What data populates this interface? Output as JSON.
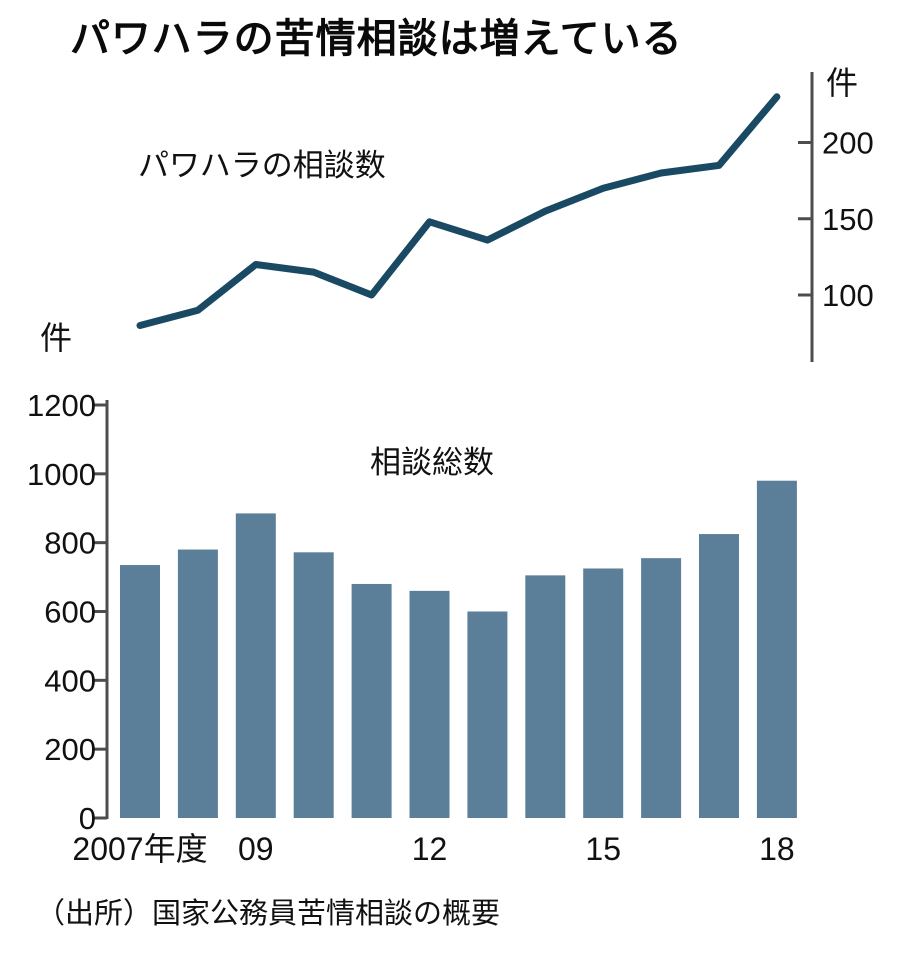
{
  "title": "パワハラの苦情相談は増えている",
  "source": "（出所）国家公務員苦情相談の概要",
  "colors": {
    "line": "#1a4a63",
    "bar": "#5c7f99",
    "axis": "#4d4d4d",
    "text": "#111111"
  },
  "chart_data": [
    {
      "type": "line",
      "title": "パワハラの相談数",
      "unit_label": "件",
      "x": [
        2007,
        2008,
        2009,
        2010,
        2011,
        2012,
        2013,
        2014,
        2015,
        2016,
        2017,
        2018
      ],
      "values": [
        80,
        90,
        120,
        115,
        100,
        148,
        136,
        155,
        170,
        180,
        185,
        230
      ],
      "ylim": [
        55,
        245
      ],
      "yticks": [
        100,
        150,
        200
      ],
      "axis_side": "right",
      "grid": false,
      "legend": "none"
    },
    {
      "type": "bar",
      "title": "相談総数",
      "unit_label": "件",
      "categories": [
        "2007",
        "2008",
        "2009",
        "2010",
        "2011",
        "2012",
        "2013",
        "2014",
        "2015",
        "2016",
        "2017",
        "2018"
      ],
      "values": [
        735,
        780,
        885,
        772,
        680,
        660,
        600,
        705,
        725,
        755,
        825,
        980
      ],
      "ylim": [
        0,
        1200
      ],
      "yticks": [
        0,
        200,
        400,
        600,
        800,
        1000,
        1200
      ],
      "xtick_labels": [
        "2007年度",
        "",
        "09",
        "",
        "",
        "12",
        "",
        "",
        "15",
        "",
        "",
        "18"
      ],
      "axis_side": "left",
      "grid": false,
      "legend": "none"
    }
  ]
}
